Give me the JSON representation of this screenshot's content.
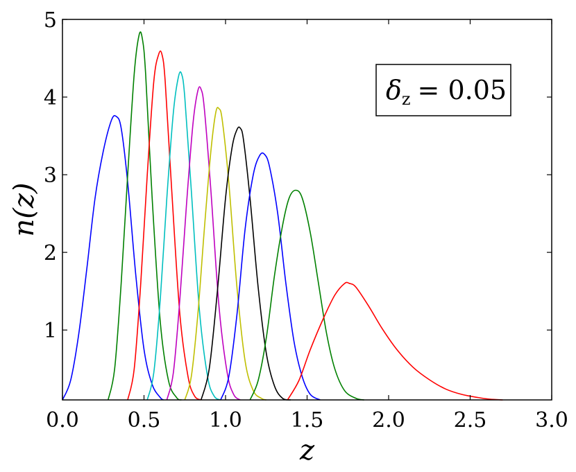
{
  "chart_data": {
    "type": "line",
    "title": "",
    "xlabel": "z",
    "ylabel": "n(z)",
    "xlim": [
      0.0,
      3.0
    ],
    "ylim": [
      0.1,
      5.0
    ],
    "grid": false,
    "legend": "none",
    "x_ticks": [
      "0.0",
      "0.5",
      "1.0",
      "1.5",
      "2.0",
      "2.5",
      "3.0"
    ],
    "x_tick_values": [
      0.0,
      0.5,
      1.0,
      1.5,
      2.0,
      2.5,
      3.0
    ],
    "y_ticks": [
      "1",
      "2",
      "3",
      "4",
      "5"
    ],
    "y_tick_values": [
      1,
      2,
      3,
      4,
      5
    ],
    "annotation": {
      "symbol": "δ",
      "subscript": "z",
      "text": "= 0.05"
    },
    "series": [
      {
        "color": "#0000ff",
        "x": [
          0.0,
          0.05,
          0.1,
          0.15,
          0.2,
          0.25,
          0.3,
          0.33,
          0.36,
          0.4,
          0.45,
          0.5,
          0.55,
          0.6,
          0.62
        ],
        "y": [
          0.1,
          0.35,
          0.95,
          1.8,
          2.7,
          3.3,
          3.7,
          3.75,
          3.6,
          2.9,
          1.7,
          0.75,
          0.3,
          0.13,
          0.1
        ]
      },
      {
        "color": "#008000",
        "x": [
          0.28,
          0.32,
          0.36,
          0.4,
          0.44,
          0.47,
          0.49,
          0.51,
          0.55,
          0.6,
          0.65,
          0.7,
          0.73
        ],
        "y": [
          0.1,
          0.5,
          1.6,
          3.0,
          4.3,
          4.8,
          4.75,
          4.3,
          2.7,
          1.1,
          0.35,
          0.13,
          0.1
        ]
      },
      {
        "color": "#ff0000",
        "x": [
          0.4,
          0.44,
          0.48,
          0.52,
          0.56,
          0.59,
          0.61,
          0.63,
          0.67,
          0.72,
          0.77,
          0.81,
          0.85
        ],
        "y": [
          0.1,
          0.5,
          1.6,
          3.0,
          4.2,
          4.55,
          4.55,
          4.2,
          2.8,
          1.2,
          0.4,
          0.15,
          0.1
        ]
      },
      {
        "color": "#00bfbf",
        "x": [
          0.52,
          0.56,
          0.6,
          0.64,
          0.68,
          0.71,
          0.73,
          0.75,
          0.79,
          0.84,
          0.89,
          0.93,
          0.97
        ],
        "y": [
          0.1,
          0.45,
          1.4,
          2.7,
          3.8,
          4.25,
          4.3,
          4.0,
          2.8,
          1.25,
          0.4,
          0.15,
          0.1
        ]
      },
      {
        "color": "#bf00bf",
        "x": [
          0.64,
          0.68,
          0.72,
          0.76,
          0.8,
          0.83,
          0.85,
          0.87,
          0.91,
          0.96,
          1.01,
          1.05,
          1.09
        ],
        "y": [
          0.1,
          0.45,
          1.4,
          2.6,
          3.65,
          4.08,
          4.1,
          3.85,
          2.8,
          1.3,
          0.45,
          0.17,
          0.1
        ]
      },
      {
        "color": "#bfbf00",
        "x": [
          0.75,
          0.79,
          0.83,
          0.87,
          0.91,
          0.94,
          0.96,
          0.98,
          1.02,
          1.07,
          1.12,
          1.17,
          1.22,
          1.25
        ],
        "y": [
          0.1,
          0.4,
          1.2,
          2.3,
          3.3,
          3.8,
          3.85,
          3.7,
          2.9,
          1.55,
          0.6,
          0.22,
          0.12,
          0.1
        ]
      },
      {
        "color": "#000000",
        "x": [
          0.85,
          0.9,
          0.95,
          1.0,
          1.04,
          1.07,
          1.09,
          1.11,
          1.15,
          1.2,
          1.25,
          1.3,
          1.35,
          1.4
        ],
        "y": [
          0.1,
          0.5,
          1.5,
          2.7,
          3.35,
          3.58,
          3.6,
          3.45,
          2.7,
          1.55,
          0.7,
          0.28,
          0.12,
          0.1
        ]
      },
      {
        "color": "#0000ff",
        "x": [
          0.97,
          1.02,
          1.07,
          1.12,
          1.17,
          1.21,
          1.24,
          1.27,
          1.32,
          1.37,
          1.42,
          1.47,
          1.52,
          1.58
        ],
        "y": [
          0.1,
          0.4,
          1.2,
          2.3,
          3.0,
          3.25,
          3.26,
          3.1,
          2.5,
          1.6,
          0.85,
          0.4,
          0.17,
          0.1
        ]
      },
      {
        "color": "#008000",
        "x": [
          1.15,
          1.2,
          1.25,
          1.3,
          1.35,
          1.39,
          1.43,
          1.47,
          1.52,
          1.57,
          1.62,
          1.67,
          1.73,
          1.8,
          1.85
        ],
        "y": [
          0.1,
          0.35,
          0.9,
          1.7,
          2.35,
          2.7,
          2.8,
          2.7,
          2.25,
          1.6,
          0.95,
          0.5,
          0.22,
          0.12,
          0.1
        ]
      },
      {
        "color": "#ff0000",
        "x": [
          1.38,
          1.45,
          1.52,
          1.6,
          1.67,
          1.73,
          1.76,
          1.8,
          1.88,
          1.96,
          2.05,
          2.15,
          2.25,
          2.35,
          2.45,
          2.55,
          2.62,
          2.7
        ],
        "y": [
          0.1,
          0.35,
          0.75,
          1.15,
          1.45,
          1.6,
          1.6,
          1.55,
          1.3,
          1.02,
          0.75,
          0.52,
          0.36,
          0.24,
          0.17,
          0.13,
          0.11,
          0.1
        ]
      }
    ]
  }
}
